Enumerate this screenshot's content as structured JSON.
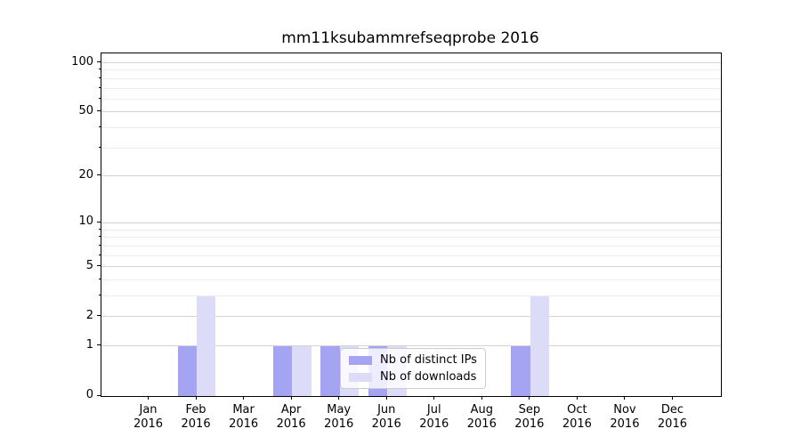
{
  "figure": {
    "title": "mm11ksubammrefseqprobe 2016"
  },
  "chart_data": {
    "type": "bar",
    "title": "mm11ksubammrefseqprobe 2016",
    "categories": [
      "Jan",
      "Feb",
      "Mar",
      "Apr",
      "May",
      "Jun",
      "Jul",
      "Aug",
      "Sep",
      "Oct",
      "Nov",
      "Dec"
    ],
    "x_tick_year": "2016",
    "series": [
      {
        "name": "Nb of distinct IPs",
        "color": "#a4a4f2",
        "values": [
          0,
          1,
          0,
          1,
          1,
          1,
          0,
          0,
          1,
          0,
          0,
          0
        ]
      },
      {
        "name": "Nb of downloads",
        "color": "#dcdcf9",
        "values": [
          0,
          3,
          0,
          1,
          1,
          1,
          0,
          0,
          3,
          0,
          0,
          0
        ]
      }
    ],
    "y_axis": {
      "scale": "log10(1+v)",
      "ticks": [
        0,
        1,
        2,
        5,
        10,
        20,
        50,
        100
      ],
      "minor_gridlines": [
        3,
        4,
        6,
        7,
        8,
        9,
        30,
        40,
        60,
        70,
        80,
        90
      ],
      "max": 114
    },
    "xlabel": "",
    "ylabel": "",
    "grid": true,
    "legend": {
      "position": "lower center",
      "entries": [
        "Nb of distinct IPs",
        "Nb of downloads"
      ]
    }
  }
}
